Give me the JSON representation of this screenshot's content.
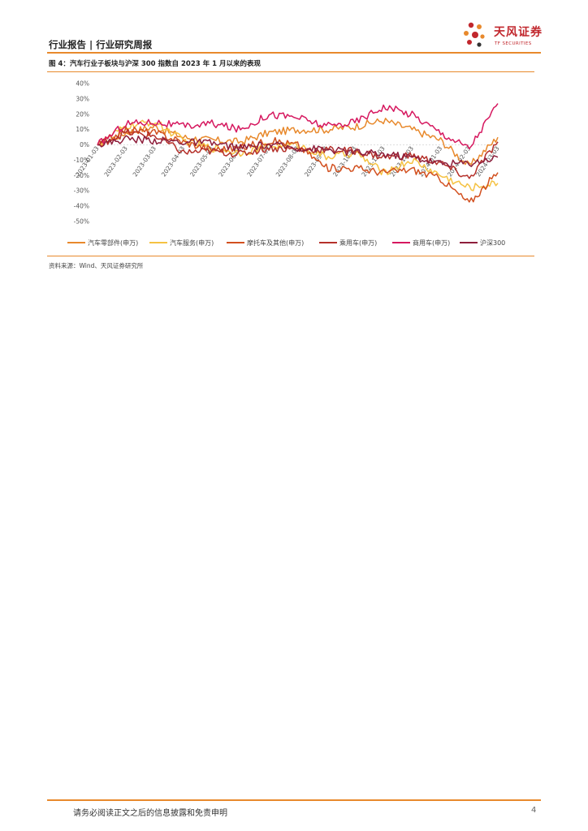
{
  "header": {
    "title": "行业报告 | 行业研究周报",
    "logo_name": "天风证券",
    "logo_sub": "TF SECURITIES"
  },
  "figure": {
    "caption": "图 4：汽车行业子板块与沪深 300 指数自 2023 年 1 月以来的表现",
    "source": "资料来源：Wind、天风证券研究所"
  },
  "chart_data": {
    "type": "line",
    "title": "",
    "xlabel": "",
    "ylabel": "",
    "x": [
      "2023-01-03",
      "2023-02-03",
      "2023-03-03",
      "2023-04-03",
      "2023-05-03",
      "2023-06-03",
      "2023-07-03",
      "2023-08-03",
      "2023-09-03",
      "2023-10-03",
      "2023-11-03",
      "2023-12-03",
      "2024-01-03",
      "2024-02-03",
      "2024-03-03"
    ],
    "y_ticks": [
      "40%",
      "30%",
      "20%",
      "10%",
      "0%",
      "-10%",
      "-20%",
      "-30%",
      "-40%",
      "-50%"
    ],
    "ylim": [
      -50,
      40
    ],
    "grid": false,
    "legend_position": "bottom",
    "series": [
      {
        "name": "汽车零部件(申万)",
        "color": "#e8892c",
        "values": [
          0,
          8,
          12,
          5,
          3,
          2,
          8,
          10,
          10,
          12,
          16,
          10,
          3,
          -14,
          5
        ]
      },
      {
        "name": "汽车服务(申万)",
        "color": "#f5c243",
        "values": [
          0,
          12,
          15,
          3,
          -2,
          -5,
          -1,
          0,
          -8,
          -5,
          -18,
          -10,
          -20,
          -28,
          -25
        ]
      },
      {
        "name": "摩托车及其他(申万)",
        "color": "#d2501f",
        "values": [
          0,
          10,
          8,
          2,
          -3,
          -2,
          3,
          0,
          -15,
          -15,
          -18,
          -16,
          -22,
          -38,
          -18
        ]
      },
      {
        "name": "乘用车(申万)",
        "color": "#b5302a",
        "values": [
          0,
          8,
          6,
          -5,
          -4,
          -6,
          -2,
          -3,
          -3,
          -4,
          -8,
          -7,
          -12,
          -22,
          2
        ]
      },
      {
        "name": "商用车(申万)",
        "color": "#d6185f",
        "values": [
          0,
          14,
          15,
          12,
          14,
          10,
          20,
          18,
          12,
          15,
          25,
          20,
          8,
          -2,
          27
        ]
      },
      {
        "name": "沪深300",
        "color": "#8e1e3b",
        "values": [
          0,
          4,
          3,
          2,
          1,
          -2,
          0,
          -2,
          -3,
          -5,
          -6,
          -8,
          -12,
          -12,
          -8
        ]
      }
    ]
  },
  "footer": {
    "disclaimer": "请务必阅读正文之后的信息披露和免责申明",
    "page": "4"
  }
}
